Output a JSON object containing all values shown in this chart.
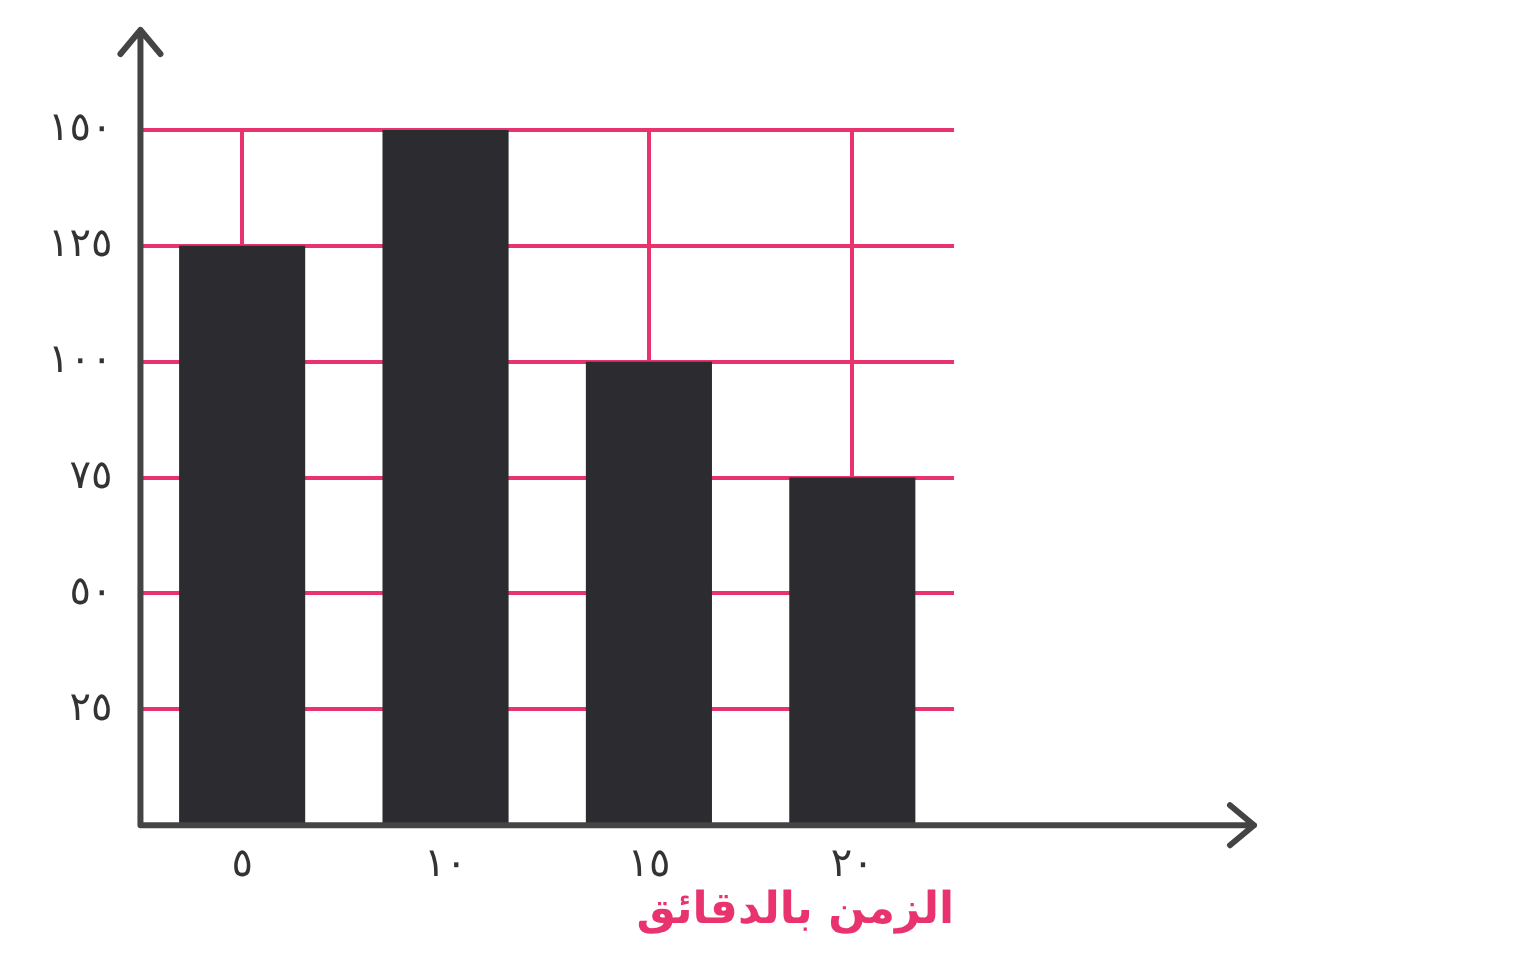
{
  "chart_data": {
    "type": "bar",
    "xlabel": "الزمن بالدقائق",
    "categories": [
      "٥",
      "١٠",
      "١٥",
      "٢٠"
    ],
    "values": [
      125,
      150,
      100,
      75
    ],
    "color": "#2b2b30",
    "ylim": [
      0,
      150
    ],
    "yticks": [
      {
        "value": 0,
        "label": null
      },
      {
        "value": 25,
        "label": "٢٥"
      },
      {
        "value": 50,
        "label": "٥٠"
      },
      {
        "value": 75,
        "label": "٧٥"
      },
      {
        "value": 100,
        "label": "١٠٠"
      },
      {
        "value": 125,
        "label": "١٢٥"
      },
      {
        "value": 150,
        "label": "١٥٠"
      }
    ],
    "grid": true,
    "legend": false
  }
}
